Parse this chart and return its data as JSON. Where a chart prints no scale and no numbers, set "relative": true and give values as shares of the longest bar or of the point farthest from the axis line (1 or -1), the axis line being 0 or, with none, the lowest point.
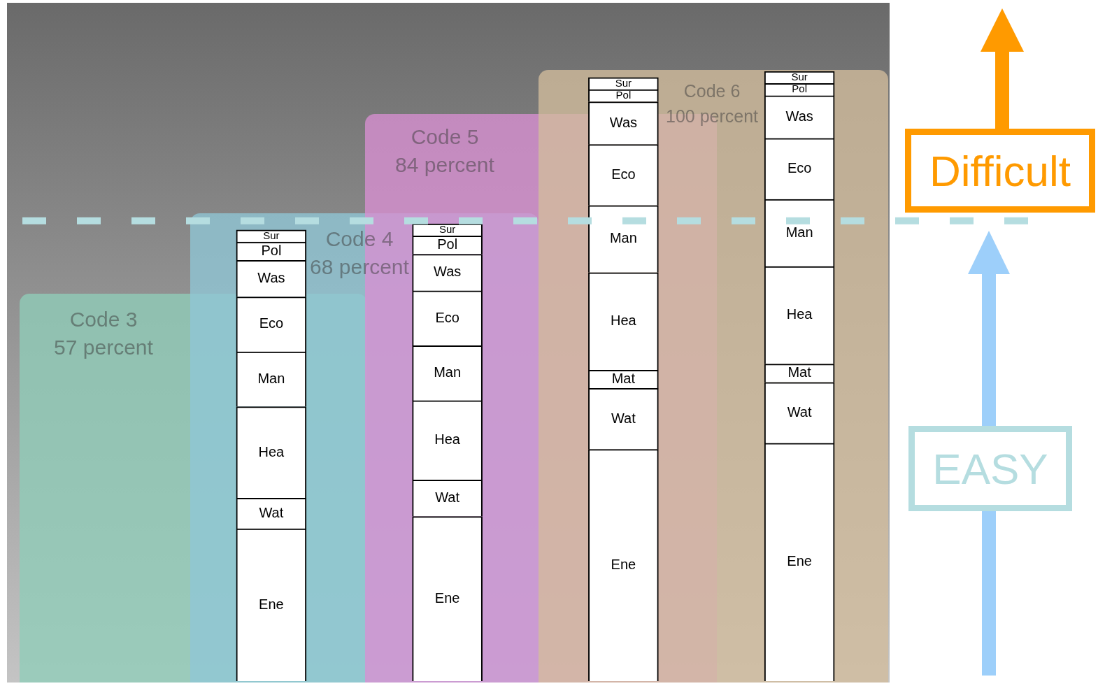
{
  "chart_data": {
    "type": "bar",
    "relative": true,
    "stacked": true,
    "categories": [
      null,
      null,
      null,
      null
    ],
    "series": [
      {
        "name": "Ene",
        "color": "#ffffff",
        "values": [
          0.25,
          0.27,
          0.38,
          0.39
        ]
      },
      {
        "name": "Wat",
        "color": "#ffffff",
        "values": [
          0.05,
          0.06,
          0.1,
          0.1
        ]
      },
      {
        "name": "Mat",
        "color": "#ffffff",
        "values": [
          null,
          null,
          0.03,
          0.03
        ]
      },
      {
        "name": "Hea",
        "color": "#ffffff",
        "values": [
          0.15,
          0.13,
          0.16,
          0.16
        ]
      },
      {
        "name": "Man",
        "color": "#ffffff",
        "values": [
          0.09,
          0.09,
          0.11,
          0.11
        ]
      },
      {
        "name": "Eco",
        "color": "#ffffff",
        "values": [
          0.09,
          0.09,
          0.1,
          0.1
        ]
      },
      {
        "name": "Was",
        "color": "#ffffff",
        "values": [
          0.06,
          0.06,
          0.07,
          0.07
        ]
      },
      {
        "name": "Pol",
        "color": "#ffffff",
        "values": [
          0.03,
          0.03,
          0.02,
          0.02
        ]
      },
      {
        "name": "Sur",
        "color": "#ffffff",
        "values": [
          0.02,
          0.02,
          0.02,
          0.02
        ]
      }
    ],
    "ref_lines": [
      {
        "axis": "y",
        "value": 0.755,
        "color": "#b5dde0",
        "line_style": "dashed"
      }
    ],
    "annotations": [
      "Difficult",
      "EASY",
      "Code 3",
      "57 percent",
      "Code 4",
      "68 percent",
      "Code 5",
      "84 percent",
      "Code 6",
      "100 percent"
    ]
  }
}
